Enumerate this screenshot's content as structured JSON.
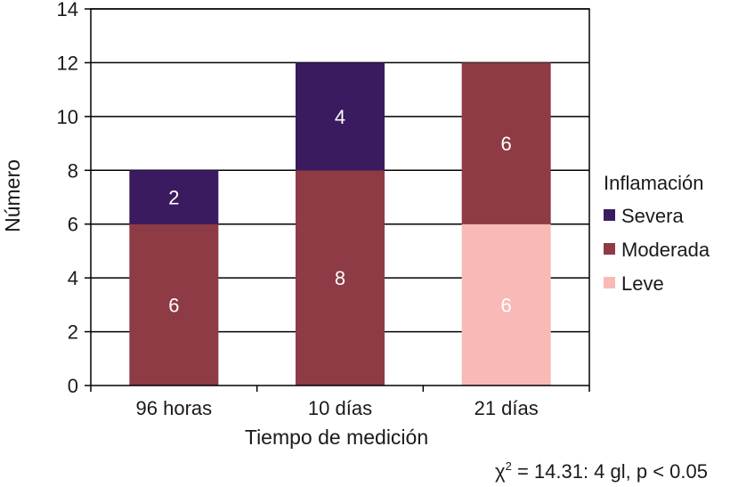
{
  "chart_data": {
    "type": "bar",
    "stacked": true,
    "categories": [
      "96 horas",
      "10 días",
      "21 días"
    ],
    "series": [
      {
        "name": "Leve",
        "color": "#f9b9b7",
        "values": [
          0,
          0,
          6
        ]
      },
      {
        "name": "Moderada",
        "color": "#8e3b46",
        "values": [
          6,
          8,
          6
        ]
      },
      {
        "name": "Severa",
        "color": "#3b1b5f",
        "values": [
          2,
          4,
          0
        ]
      }
    ],
    "legend_order": [
      "Severa",
      "Moderada",
      "Leve"
    ],
    "title": "",
    "xlabel": "Tiempo de medición",
    "ylabel": "Número",
    "ylim": [
      0,
      14
    ],
    "yticks": [
      0,
      2,
      4,
      6,
      8,
      10,
      12,
      14
    ],
    "grid": "horizontal",
    "legend_title": "Inflamación",
    "legend_position": "right",
    "annotation": {
      "chi_symbol": "χ",
      "exponent": "2",
      "text": " = 14.31: 4 gl, p < 0.05"
    }
  }
}
